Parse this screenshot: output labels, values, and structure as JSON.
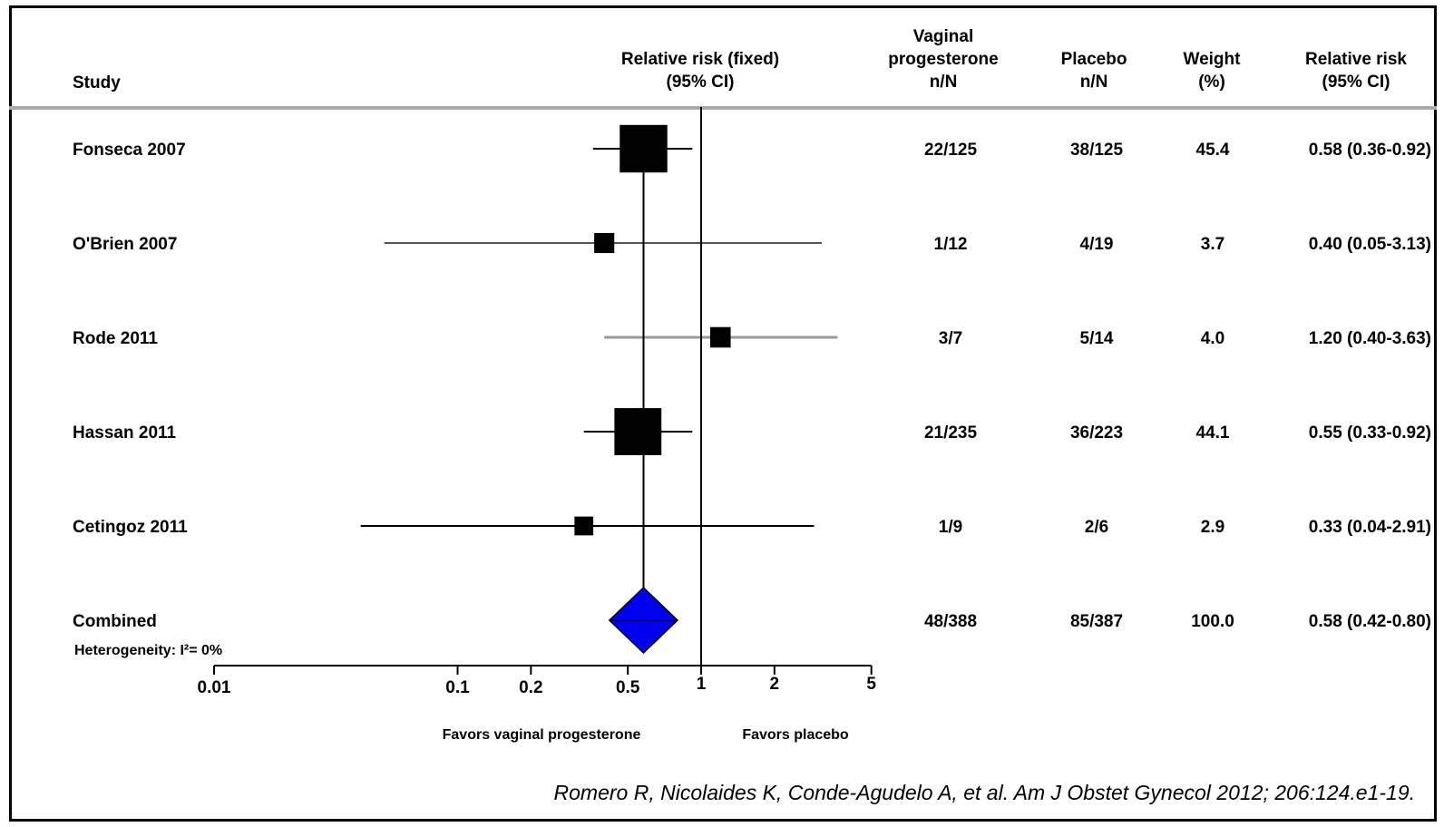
{
  "chart_data": {
    "type": "forest",
    "columns": {
      "study": "Study",
      "rr_plot": [
        "Relative risk (fixed)",
        "(95% CI)"
      ],
      "treatment": [
        "Vaginal",
        "progesterone",
        "n/N"
      ],
      "placebo": [
        "Placebo",
        "n/N"
      ],
      "weight": [
        "Weight",
        "(%)"
      ],
      "rr_text": [
        "Relative risk",
        "(95% CI)"
      ]
    },
    "rows": [
      {
        "study": "Fonseca 2007",
        "treatment": "22/125",
        "placebo": "38/125",
        "weight": "45.4",
        "rr_text": "0.58 (0.36-0.92)",
        "rr": 0.58,
        "lo": 0.36,
        "hi": 0.92,
        "weight_value": 45.4,
        "line_color": "#000000"
      },
      {
        "study": "O'Brien 2007",
        "treatment": "1/12",
        "placebo": "4/19",
        "weight": "3.7",
        "rr_text": "0.40 (0.05-3.13)",
        "rr": 0.4,
        "lo": 0.05,
        "hi": 3.13,
        "weight_value": 3.7,
        "line_color": "#555555"
      },
      {
        "study": "Rode 2011",
        "treatment": "3/7",
        "placebo": "5/14",
        "weight": "4.0",
        "rr_text": "1.20 (0.40-3.63)",
        "rr": 1.2,
        "lo": 0.4,
        "hi": 3.63,
        "weight_value": 4.0,
        "line_color": "#999999"
      },
      {
        "study": "Hassan 2011",
        "treatment": "21/235",
        "placebo": "36/223",
        "weight": "44.1",
        "rr_text": "0.55 (0.33-0.92)",
        "rr": 0.55,
        "lo": 0.33,
        "hi": 0.92,
        "weight_value": 44.1,
        "line_color": "#000000"
      },
      {
        "study": "Cetingoz 2011",
        "treatment": "1/9",
        "placebo": "2/6",
        "weight": "2.9",
        "rr_text": "0.33 (0.04-2.91)",
        "rr": 0.33,
        "lo": 0.04,
        "hi": 2.91,
        "weight_value": 2.9,
        "line_color": "#000000"
      }
    ],
    "combined": {
      "study": "Combined",
      "heterogeneity": "Heterogeneity: I²= 0%",
      "treatment": "48/388",
      "placebo": "85/387",
      "weight": "100.0",
      "rr_text": "0.58 (0.42-0.80)",
      "rr": 0.58,
      "lo": 0.42,
      "hi": 0.8,
      "color": "#0000ee"
    },
    "x_axis": {
      "scale": "log",
      "ticks": [
        0.01,
        0.1,
        0.2,
        0.5,
        1,
        2,
        5
      ],
      "tick_labels": [
        "0.01",
        "0.1",
        "0.2",
        "0.5",
        "1",
        "2",
        "5"
      ],
      "range": [
        0.01,
        5
      ]
    },
    "favors_left": "Favors vaginal progesterone",
    "favors_right": "Favors placebo",
    "citation": "Romero R, Nicolaides K, Conde-Agudelo A, et al. Am J Obstet Gynecol 2012; 206:124.e1-19."
  }
}
